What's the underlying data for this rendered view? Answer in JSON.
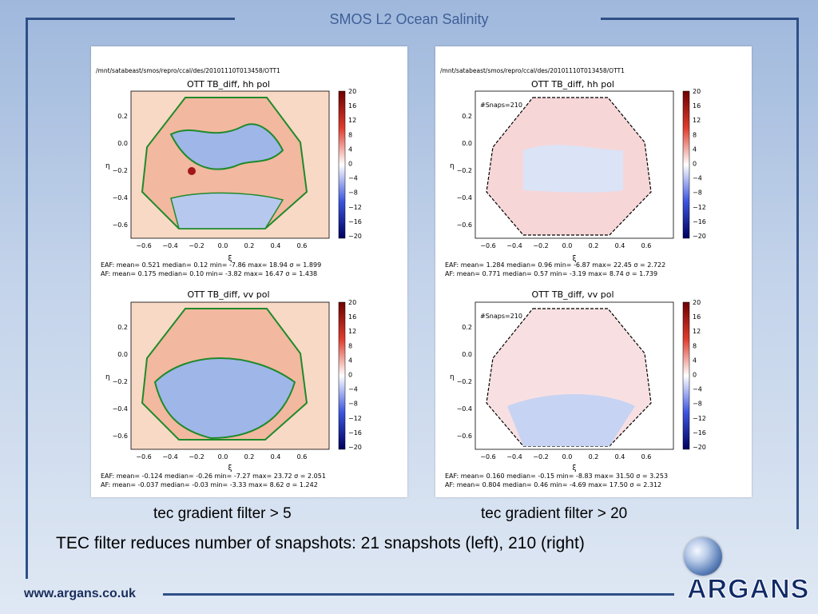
{
  "slide": {
    "title": "SMOS L2 Ocean Salinity",
    "footer_url": "www.argans.co.uk",
    "logo_text": "ARGANS",
    "caption_left": "tec gradient filter > 5",
    "caption_right": "tec gradient filter > 20",
    "summary": "TEC filter reduces number of snapshots: 21 snapshots (left), 210 (right)"
  },
  "panels": [
    {
      "path": "/mnt/satabeast/smos/repro/ccal/des/20101110T013458/OTT1",
      "top_title": "OTT TB_diff, hh pol",
      "bottom_title": "OTT TB_diff, vv pol",
      "snaps": "",
      "top_stats": [
        "EAF: mean= 0.521  median= 0.12  min= -7.86  max= 18.94  σ = 1.899",
        "AF: mean= 0.175  median= 0.10  min= -3.82  max= 16.47  σ = 1.438"
      ],
      "bottom_stats": [
        "EAF: mean= -0.124  median= -0.26  min= -7.27  max= 23.72  σ = 2.051",
        "AF: mean= -0.037  median= -0.03  min= -3.33  max= 8.62  σ = 1.242"
      ]
    },
    {
      "path": "/mnt/satabeast/smos/repro/ccal/des/20101110T013458/OTT1",
      "top_title": "OTT TB_diff, hh pol",
      "bottom_title": "OTT TB_diff, vv pol",
      "snaps": "#Snaps=210",
      "top_stats": [
        "EAF: mean= 1.284  median= 0.96  min= -6.87  max= 22.45  σ = 2.722",
        "AF: mean= 0.771  median= 0.57  min= -3.19  max= 8.74  σ = 1.739"
      ],
      "bottom_stats": [
        "EAF: mean= 0.160  median= -0.15  min= -8.83  max= 31.50  σ = 3.253",
        "AF: mean= 0.804  median= 0.46  min= -4.69  max= 17.50  σ = 2.312"
      ]
    }
  ],
  "axes": {
    "xlabel": "ξ",
    "ylabel": "η",
    "xticks": [
      "−0.6",
      "−0.4",
      "−0.2",
      "0.0",
      "0.2",
      "0.4",
      "0.6"
    ],
    "yticks": [
      "0.2",
      "0.0",
      "−0.2",
      "−0.4",
      "−0.6"
    ],
    "colorbar_ticks": [
      "20",
      "16",
      "12",
      "8",
      "4",
      "0",
      "−4",
      "−8",
      "−12",
      "−16",
      "−20"
    ]
  },
  "colors": {
    "frame": "#2e4f86",
    "title": "#3e5f98",
    "warm": "#f2b8a0",
    "cold": "#9fb6e8",
    "contour": "#1f8a2a"
  }
}
